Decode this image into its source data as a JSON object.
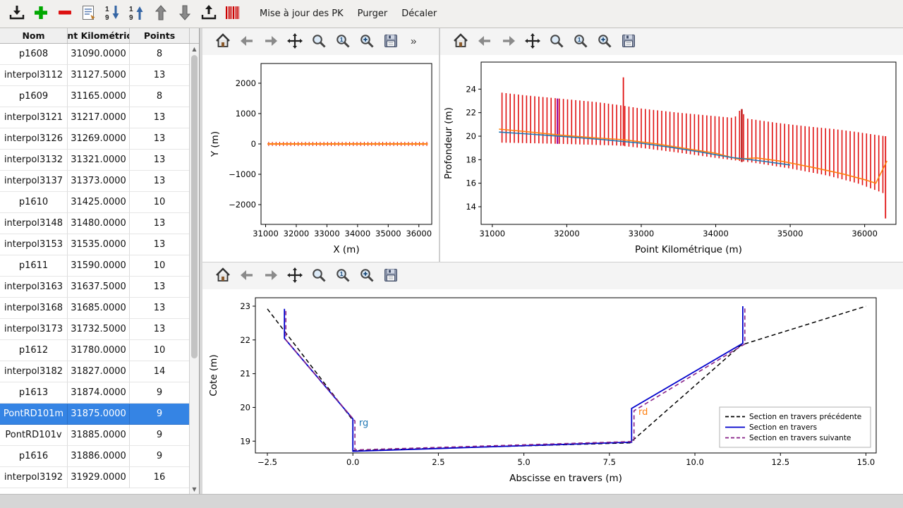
{
  "toolbar": {
    "buttons": [
      {
        "name": "import",
        "icon": "tray-down"
      },
      {
        "name": "add-section",
        "icon": "plus-green"
      },
      {
        "name": "remove-section",
        "icon": "minus-red"
      },
      {
        "name": "edit-form",
        "icon": "form"
      },
      {
        "name": "sort-descending",
        "icon": "sort-desc"
      },
      {
        "name": "sort-ascending",
        "icon": "sort-asc"
      },
      {
        "name": "move-up",
        "icon": "arrow-up"
      },
      {
        "name": "move-down",
        "icon": "arrow-down"
      },
      {
        "name": "export",
        "icon": "tray-up"
      },
      {
        "name": "pk-marks",
        "icon": "red-stripes"
      }
    ],
    "menu_items": [
      "Mise à jour des PK",
      "Purger",
      "Décaler"
    ]
  },
  "table": {
    "columns": [
      "Nom",
      "Point Kilométrique",
      "Points"
    ],
    "rows": [
      {
        "name": "p1608",
        "pk": "31090.0000",
        "points": "8",
        "selected": false
      },
      {
        "name": "interpol3112",
        "pk": "31127.5000",
        "points": "13",
        "selected": false
      },
      {
        "name": "p1609",
        "pk": "31165.0000",
        "points": "8",
        "selected": false
      },
      {
        "name": "interpol3121",
        "pk": "31217.0000",
        "points": "13",
        "selected": false
      },
      {
        "name": "interpol3126",
        "pk": "31269.0000",
        "points": "13",
        "selected": false
      },
      {
        "name": "interpol3132",
        "pk": "31321.0000",
        "points": "13",
        "selected": false
      },
      {
        "name": "interpol3137",
        "pk": "31373.0000",
        "points": "13",
        "selected": false
      },
      {
        "name": "p1610",
        "pk": "31425.0000",
        "points": "10",
        "selected": false
      },
      {
        "name": "interpol3148",
        "pk": "31480.0000",
        "points": "13",
        "selected": false
      },
      {
        "name": "interpol3153",
        "pk": "31535.0000",
        "points": "13",
        "selected": false
      },
      {
        "name": "p1611",
        "pk": "31590.0000",
        "points": "10",
        "selected": false
      },
      {
        "name": "interpol3163",
        "pk": "31637.5000",
        "points": "13",
        "selected": false
      },
      {
        "name": "interpol3168",
        "pk": "31685.0000",
        "points": "13",
        "selected": false
      },
      {
        "name": "interpol3173",
        "pk": "31732.5000",
        "points": "13",
        "selected": false
      },
      {
        "name": "p1612",
        "pk": "31780.0000",
        "points": "10",
        "selected": false
      },
      {
        "name": "interpol3182",
        "pk": "31827.0000",
        "points": "14",
        "selected": false
      },
      {
        "name": "p1613",
        "pk": "31874.0000",
        "points": "9",
        "selected": false
      },
      {
        "name": "PontRD101m",
        "pk": "31875.0000",
        "points": "9",
        "selected": true
      },
      {
        "name": "PontRD101v",
        "pk": "31885.0000",
        "points": "9",
        "selected": false
      },
      {
        "name": "p1616",
        "pk": "31886.0000",
        "points": "9",
        "selected": false
      },
      {
        "name": "interpol3192",
        "pk": "31929.0000",
        "points": "16",
        "selected": false
      }
    ]
  },
  "colors": {
    "selection": "#3584e4",
    "bars_red": "#e01010",
    "line_orange": "#ff7f0e",
    "line_blue_profile": "#1f77b4",
    "section_blue": "#0000cc",
    "section_purple": "#882288"
  },
  "chart_data": [
    {
      "id": "plan",
      "type": "line",
      "toolbar_icons": [
        "home",
        "back",
        "forward",
        "pan",
        "zoom",
        "zoom-1",
        "zoom-plus",
        "save",
        "more"
      ],
      "xlabel": "X (m)",
      "ylabel": "Y (m)",
      "xlim": [
        30850,
        36420
      ],
      "ylim": [
        -2650,
        2650
      ],
      "xticks": [
        [
          31000,
          "31000"
        ],
        [
          32000,
          "32000"
        ],
        [
          33000,
          "33000"
        ],
        [
          34000,
          "34000"
        ],
        [
          35000,
          "35000"
        ],
        [
          36000,
          "36000"
        ]
      ],
      "yticks": [
        [
          2000,
          "2000"
        ],
        [
          1000,
          "1000"
        ],
        [
          0,
          "0"
        ],
        [
          -1000,
          "−1000"
        ],
        [
          -2000,
          "−2000"
        ]
      ],
      "bars_envelope": {
        "color": "#e01010",
        "line_width": 1,
        "interval": 120,
        "x_start": 31100,
        "x_end": 36260,
        "top": [
          [
            31100,
            70
          ],
          [
            36260,
            70
          ]
        ],
        "bottom": [
          [
            31100,
            -70
          ],
          [
            36260,
            -70
          ]
        ]
      },
      "series": [
        {
          "name": "axe-riviere",
          "color": "#ff7f0e",
          "width": 2.2,
          "dash": null,
          "points": [
            [
              31060,
              0
            ],
            [
              36290,
              0
            ]
          ]
        }
      ]
    },
    {
      "id": "profil",
      "type": "line+bars",
      "toolbar_icons": [
        "home",
        "back",
        "forward",
        "pan",
        "zoom",
        "zoom-1",
        "zoom-plus",
        "save"
      ],
      "xlabel": "Point Kilométrique (m)",
      "ylabel": "Profondeur (m)",
      "xlim": [
        30850,
        36420
      ],
      "ylim": [
        12.5,
        26.3
      ],
      "xticks": [
        [
          31000,
          "31000"
        ],
        [
          32000,
          "32000"
        ],
        [
          33000,
          "33000"
        ],
        [
          34000,
          "34000"
        ],
        [
          35000,
          "35000"
        ],
        [
          36000,
          "36000"
        ]
      ],
      "yticks": [
        [
          14,
          "14"
        ],
        [
          16,
          "16"
        ],
        [
          18,
          "18"
        ],
        [
          20,
          "20"
        ],
        [
          22,
          "22"
        ],
        [
          24,
          "24"
        ]
      ],
      "bars_envelope": {
        "color": "#e01010",
        "line_width": 1.6,
        "interval": 55,
        "x_start": 31130,
        "x_end": 36270,
        "top": [
          [
            31130,
            23.7
          ],
          [
            31400,
            23.5
          ],
          [
            31900,
            23.2
          ],
          [
            32400,
            22.9
          ],
          [
            32700,
            22.65
          ],
          [
            33000,
            22.35
          ],
          [
            33500,
            22.0
          ],
          [
            34000,
            21.7
          ],
          [
            34250,
            21.55
          ],
          [
            34330,
            22.25
          ],
          [
            34420,
            21.5
          ],
          [
            34800,
            21.15
          ],
          [
            35200,
            20.85
          ],
          [
            35600,
            20.6
          ],
          [
            35900,
            20.35
          ],
          [
            36270,
            20.0
          ]
        ],
        "bottom": [
          [
            31130,
            19.45
          ],
          [
            31900,
            19.35
          ],
          [
            32700,
            19.2
          ],
          [
            33000,
            19.0
          ],
          [
            33500,
            18.6
          ],
          [
            34000,
            18.15
          ],
          [
            34500,
            17.75
          ],
          [
            35000,
            17.25
          ],
          [
            35500,
            16.65
          ],
          [
            35900,
            16.0
          ],
          [
            36150,
            15.4
          ],
          [
            36270,
            15.1
          ]
        ]
      },
      "extra_bars": [
        [
          32760,
          19.2,
          25.0,
          "#e01010",
          1.8
        ],
        [
          31875,
          19.35,
          23.2,
          "#990099",
          2.2
        ],
        [
          34350,
          17.8,
          22.3,
          "#bb1111",
          2.4
        ],
        [
          36280,
          13.0,
          20.0,
          "#e01010",
          1.8
        ]
      ],
      "series": [
        {
          "name": "profondeur-max",
          "color": "#ff7f0e",
          "width": 1.6,
          "dash": null,
          "points": [
            [
              31090,
              20.6
            ],
            [
              31400,
              20.42
            ],
            [
              31900,
              20.1
            ],
            [
              32400,
              19.85
            ],
            [
              32760,
              19.7
            ],
            [
              33200,
              19.35
            ],
            [
              33600,
              18.95
            ],
            [
              34000,
              18.55
            ],
            [
              34300,
              18.05
            ],
            [
              34550,
              18.15
            ],
            [
              34900,
              17.85
            ],
            [
              35300,
              17.35
            ],
            [
              35700,
              16.8
            ],
            [
              36000,
              16.3
            ],
            [
              36150,
              16.0
            ],
            [
              36300,
              17.9
            ]
          ]
        },
        {
          "name": "fond",
          "color": "#1f77b4",
          "width": 1.6,
          "dash": null,
          "points": [
            [
              31090,
              20.35
            ],
            [
              31500,
              20.18
            ],
            [
              32000,
              19.95
            ],
            [
              32500,
              19.7
            ],
            [
              33000,
              19.4
            ],
            [
              33400,
              19.05
            ],
            [
              33800,
              18.65
            ],
            [
              34200,
              18.2
            ],
            [
              34600,
              17.9
            ],
            [
              35000,
              17.55
            ]
          ]
        }
      ]
    },
    {
      "id": "travers",
      "type": "line",
      "toolbar_icons": [
        "home",
        "back",
        "forward",
        "pan",
        "zoom",
        "zoom-1",
        "zoom-plus",
        "save"
      ],
      "xlabel": "Abscisse en travers (m)",
      "ylabel": "Cote (m)",
      "xlim": [
        -2.85,
        15.3
      ],
      "ylim": [
        18.65,
        23.25
      ],
      "xticks": [
        [
          -2.5,
          "−2.5"
        ],
        [
          0,
          "0.0"
        ],
        [
          2.5,
          "2.5"
        ],
        [
          5,
          "5.0"
        ],
        [
          7.5,
          "7.5"
        ],
        [
          10,
          "10.0"
        ],
        [
          12.5,
          "12.5"
        ],
        [
          15,
          "15.0"
        ]
      ],
      "yticks": [
        [
          19,
          "19"
        ],
        [
          20,
          "20"
        ],
        [
          21,
          "21"
        ],
        [
          22,
          "22"
        ],
        [
          23,
          "23"
        ]
      ],
      "series": [
        {
          "name": "section-precedente",
          "color": "#000000",
          "width": 1.5,
          "dash": "6,4",
          "points": [
            [
              -2.5,
              22.92
            ],
            [
              0,
              19.62
            ],
            [
              0,
              18.72
            ],
            [
              8.1,
              18.95
            ],
            [
              11.35,
              21.85
            ],
            [
              15.0,
              23.0
            ]
          ]
        },
        {
          "name": "section-courante",
          "color": "#0000cc",
          "width": 1.8,
          "dash": null,
          "points": [
            [
              -2.0,
              22.92
            ],
            [
              -2.0,
              22.05
            ],
            [
              0,
              19.66
            ],
            [
              0,
              18.7
            ],
            [
              8.15,
              18.97
            ],
            [
              8.15,
              19.97
            ],
            [
              11.4,
              21.9
            ],
            [
              11.4,
              23.0
            ]
          ]
        },
        {
          "name": "section-suivante",
          "color": "#882288",
          "width": 1.6,
          "dash": "6,4",
          "points": [
            [
              -1.96,
              22.86
            ],
            [
              -1.96,
              22.0
            ],
            [
              0.06,
              19.6
            ],
            [
              0.06,
              18.74
            ],
            [
              8.22,
              18.99
            ],
            [
              8.22,
              19.9
            ],
            [
              11.46,
              21.88
            ],
            [
              11.46,
              22.94
            ]
          ]
        }
      ],
      "annotations": [
        {
          "text": "rg",
          "x": 0.18,
          "y": 19.45,
          "color": "#1f77b4"
        },
        {
          "text": "rd",
          "x": 8.35,
          "y": 19.78,
          "color": "#ff7f0e"
        }
      ],
      "legend": {
        "position": "lower right",
        "entries": [
          {
            "label": "Section en travers précédente",
            "color": "#000000",
            "dash": "5,3"
          },
          {
            "label": "Section en travers",
            "color": "#0000cc",
            "dash": null
          },
          {
            "label": "Section en travers suivante",
            "color": "#882288",
            "dash": "5,3"
          }
        ]
      }
    }
  ]
}
